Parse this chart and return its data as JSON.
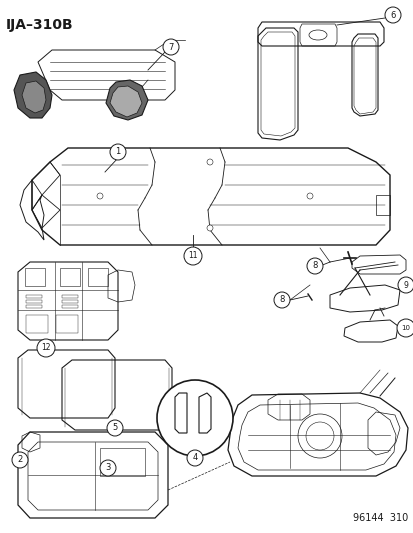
{
  "title": "IJA–310B",
  "footer": "96144  310",
  "bg_color": "#ffffff",
  "line_color": "#1a1a1a",
  "title_fontsize": 10,
  "footer_fontsize": 7,
  "figsize": [
    4.14,
    5.33
  ],
  "dpi": 100
}
